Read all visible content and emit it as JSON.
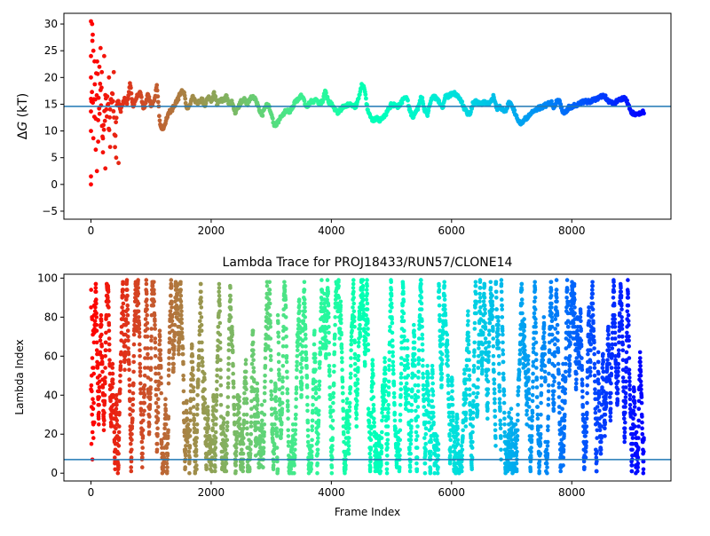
{
  "chart_data": [
    {
      "type": "scatter",
      "title": "",
      "xlabel": "",
      "ylabel_prefix": "Δ",
      "ylabel_var": "G",
      "ylabel_suffix": " (kT)",
      "xlim": [
        -450,
        9650
      ],
      "ylim": [
        -6.5,
        32.0
      ],
      "xticks": [
        0,
        2000,
        4000,
        6000,
        8000
      ],
      "yticks": [
        -5,
        0,
        5,
        10,
        15,
        20,
        25,
        30
      ],
      "hline": 14.6,
      "hline_color": "#1f77b4",
      "colormap": "rainbow_r",
      "grid": false,
      "x_end": 9200,
      "keypoints": [
        [
          0,
          15
        ],
        [
          20,
          24
        ],
        [
          40,
          12
        ],
        [
          60,
          18
        ],
        [
          80,
          14
        ],
        [
          100,
          22
        ],
        [
          130,
          13
        ],
        [
          160,
          19
        ],
        [
          200,
          11
        ],
        [
          250,
          17
        ],
        [
          300,
          12
        ],
        [
          350,
          18
        ],
        [
          400,
          8
        ],
        [
          440,
          16
        ],
        [
          500,
          14
        ],
        [
          560,
          16
        ],
        [
          600,
          15
        ],
        [
          650,
          19
        ],
        [
          700,
          14.5
        ],
        [
          760,
          16.5
        ],
        [
          820,
          17.5
        ],
        [
          870,
          14
        ],
        [
          900,
          15
        ],
        [
          950,
          17
        ],
        [
          1000,
          14.5
        ],
        [
          1050,
          15.5
        ],
        [
          1100,
          18.5
        ],
        [
          1150,
          11
        ],
        [
          1200,
          10.5
        ],
        [
          1250,
          12
        ],
        [
          1300,
          13.5
        ],
        [
          1350,
          14
        ],
        [
          1400,
          15
        ],
        [
          1450,
          16
        ],
        [
          1500,
          17.5
        ],
        [
          1550,
          17
        ],
        [
          1600,
          14
        ],
        [
          1650,
          15
        ],
        [
          1700,
          16.5
        ],
        [
          1750,
          15
        ],
        [
          1800,
          15.5
        ],
        [
          1850,
          16
        ],
        [
          1900,
          14.5
        ],
        [
          1950,
          16.5
        ],
        [
          2000,
          15.5
        ],
        [
          2050,
          17
        ],
        [
          2100,
          15
        ],
        [
          2150,
          16
        ],
        [
          2200,
          15.5
        ],
        [
          2250,
          16.5
        ],
        [
          2300,
          15
        ],
        [
          2350,
          15.5
        ],
        [
          2400,
          13.5
        ],
        [
          2450,
          14.5
        ],
        [
          2500,
          15.5
        ],
        [
          2550,
          16
        ],
        [
          2600,
          15
        ],
        [
          2650,
          16
        ],
        [
          2700,
          16.5
        ],
        [
          2750,
          15.5
        ],
        [
          2800,
          14
        ],
        [
          2850,
          13
        ],
        [
          2900,
          14.5
        ],
        [
          2950,
          15
        ],
        [
          3000,
          13
        ],
        [
          3050,
          11
        ],
        [
          3100,
          11.5
        ],
        [
          3150,
          12.5
        ],
        [
          3200,
          13
        ],
        [
          3250,
          14
        ],
        [
          3300,
          13.5
        ],
        [
          3350,
          14.5
        ],
        [
          3400,
          15.5
        ],
        [
          3450,
          16
        ],
        [
          3500,
          16.5
        ],
        [
          3550,
          15.5
        ],
        [
          3600,
          14.5
        ],
        [
          3650,
          15.5
        ],
        [
          3700,
          15.5
        ],
        [
          3750,
          16
        ],
        [
          3800,
          15
        ],
        [
          3850,
          15.5
        ],
        [
          3900,
          17.5
        ],
        [
          3950,
          15.5
        ],
        [
          4000,
          15
        ],
        [
          4100,
          13.5
        ],
        [
          4200,
          14.5
        ],
        [
          4300,
          15
        ],
        [
          4400,
          14.5
        ],
        [
          4450,
          16
        ],
        [
          4500,
          18.5
        ],
        [
          4550,
          18
        ],
        [
          4600,
          14
        ],
        [
          4650,
          12.5
        ],
        [
          4700,
          12
        ],
        [
          4750,
          12.5
        ],
        [
          4800,
          12
        ],
        [
          4850,
          12.5
        ],
        [
          4900,
          13
        ],
        [
          4950,
          14
        ],
        [
          5000,
          15
        ],
        [
          5100,
          14.5
        ],
        [
          5150,
          15
        ],
        [
          5200,
          16
        ],
        [
          5250,
          16.5
        ],
        [
          5300,
          14
        ],
        [
          5350,
          12.5
        ],
        [
          5400,
          13.5
        ],
        [
          5450,
          14.5
        ],
        [
          5500,
          16.5
        ],
        [
          5550,
          14
        ],
        [
          5600,
          13
        ],
        [
          5650,
          15.5
        ],
        [
          5700,
          16.5
        ],
        [
          5750,
          16
        ],
        [
          5800,
          15.5
        ],
        [
          5850,
          14
        ],
        [
          5900,
          16.5
        ],
        [
          5950,
          16.5
        ],
        [
          6000,
          17
        ],
        [
          6050,
          17
        ],
        [
          6100,
          16.5
        ],
        [
          6150,
          16
        ],
        [
          6200,
          14.5
        ],
        [
          6250,
          13.5
        ],
        [
          6300,
          13
        ],
        [
          6350,
          15
        ],
        [
          6400,
          15.5
        ],
        [
          6500,
          15
        ],
        [
          6550,
          15.5
        ],
        [
          6600,
          15
        ],
        [
          6650,
          15.5
        ],
        [
          6700,
          16.5
        ],
        [
          6750,
          14
        ],
        [
          6800,
          14.5
        ],
        [
          6850,
          14
        ],
        [
          6900,
          13.5
        ],
        [
          6950,
          15.5
        ],
        [
          7000,
          15
        ],
        [
          7050,
          13.5
        ],
        [
          7100,
          12
        ],
        [
          7150,
          11.5
        ],
        [
          7200,
          12
        ],
        [
          7300,
          13
        ],
        [
          7400,
          14
        ],
        [
          7500,
          14.5
        ],
        [
          7600,
          15
        ],
        [
          7650,
          15.5
        ],
        [
          7700,
          14.5
        ],
        [
          7750,
          15.5
        ],
        [
          7800,
          15.5
        ],
        [
          7850,
          13.5
        ],
        [
          7900,
          13.5
        ],
        [
          7950,
          14.5
        ],
        [
          8000,
          14.5
        ],
        [
          8100,
          15
        ],
        [
          8200,
          15.5
        ],
        [
          8300,
          15.5
        ],
        [
          8400,
          16
        ],
        [
          8500,
          16.5
        ],
        [
          8550,
          16.5
        ],
        [
          8600,
          15.5
        ],
        [
          8700,
          15
        ],
        [
          8800,
          16
        ],
        [
          8900,
          16
        ],
        [
          8950,
          14.5
        ],
        [
          9000,
          13.5
        ],
        [
          9050,
          13
        ],
        [
          9100,
          13
        ],
        [
          9150,
          13.5
        ],
        [
          9200,
          13.5
        ]
      ],
      "early_points": [
        [
          0,
          0
        ],
        [
          0,
          1.5
        ],
        [
          0,
          10
        ],
        [
          0,
          16
        ],
        [
          0,
          20
        ],
        [
          0,
          24
        ],
        [
          0,
          30.5
        ],
        [
          20,
          30
        ],
        [
          30,
          28
        ],
        [
          40,
          25
        ],
        [
          60,
          23
        ],
        [
          80,
          6.5
        ],
        [
          100,
          2.5
        ],
        [
          120,
          8
        ],
        [
          140,
          22
        ],
        [
          160,
          25.5
        ],
        [
          180,
          21
        ],
        [
          200,
          6
        ],
        [
          220,
          24
        ],
        [
          240,
          3
        ],
        [
          300,
          20
        ],
        [
          320,
          7
        ],
        [
          380,
          21
        ],
        [
          420,
          5
        ],
        [
          460,
          4
        ]
      ]
    },
    {
      "type": "scatter",
      "title": "Lambda Trace for PROJ18433/RUN57/CLONE14",
      "xlabel": "Frame Index",
      "ylabel": "Lambda Index",
      "xlim": [
        -450,
        9650
      ],
      "ylim": [
        -4,
        102
      ],
      "xticks": [
        0,
        2000,
        4000,
        6000,
        8000
      ],
      "yticks": [
        0,
        20,
        40,
        60,
        80,
        100
      ],
      "hline": 7,
      "hline_color": "#1f77b4",
      "colormap": "rainbow_r",
      "grid": false,
      "x_end": 9200,
      "n_frames": 9200,
      "index_range": [
        0,
        99
      ]
    }
  ]
}
